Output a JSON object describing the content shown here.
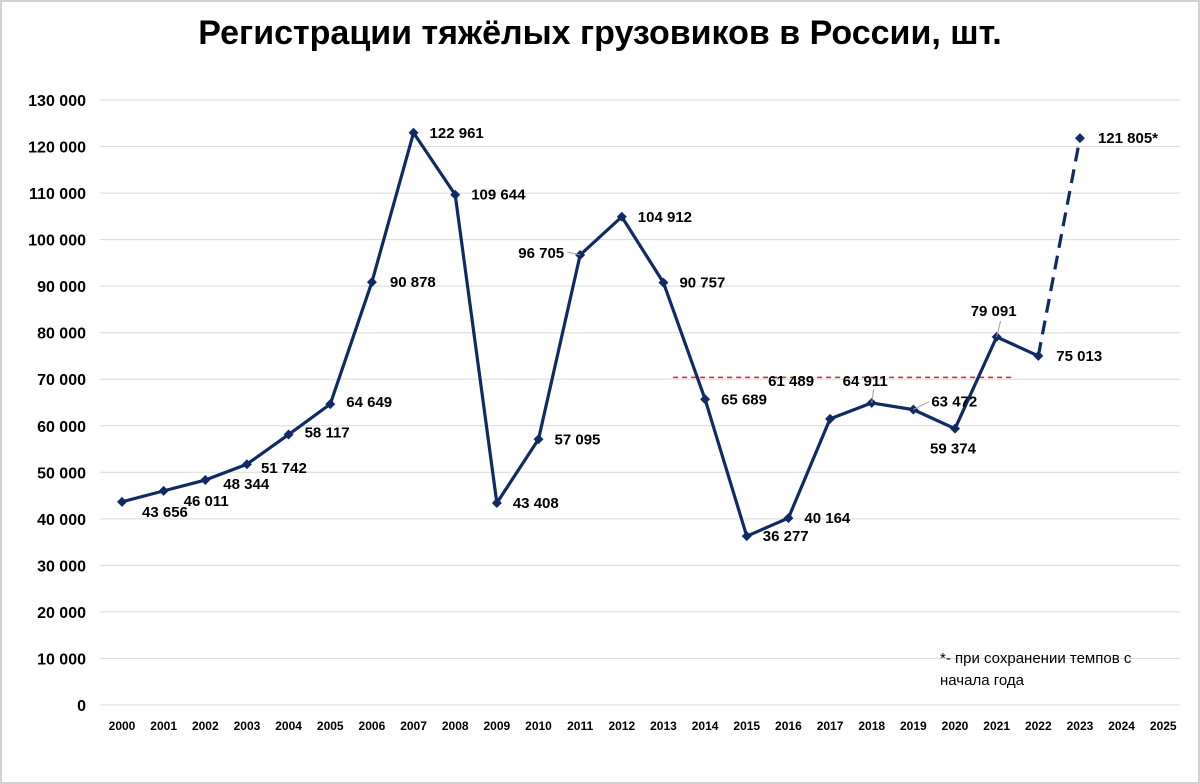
{
  "chart_data": {
    "type": "line",
    "title": "Регистрации тяжёлых грузовиков в России, шт.",
    "xlabel": "",
    "ylabel": "",
    "categories": [
      "2000",
      "2001",
      "2002",
      "2003",
      "2004",
      "2005",
      "2006",
      "2007",
      "2008",
      "2009",
      "2010",
      "2011",
      "2012",
      "2013",
      "2014",
      "2015",
      "2016",
      "2017",
      "2018",
      "2019",
      "2020",
      "2021",
      "2022",
      "2023",
      "2024",
      "2025"
    ],
    "ylim": [
      0,
      130000
    ],
    "y_ticks": [
      {
        "value": 0,
        "label": "0"
      },
      {
        "value": 10000,
        "label": "10 000"
      },
      {
        "value": 20000,
        "label": "20 000"
      },
      {
        "value": 30000,
        "label": "30 000"
      },
      {
        "value": 40000,
        "label": "40 000"
      },
      {
        "value": 50000,
        "label": "50 000"
      },
      {
        "value": 60000,
        "label": "60 000"
      },
      {
        "value": 70000,
        "label": "70 000"
      },
      {
        "value": 80000,
        "label": "80 000"
      },
      {
        "value": 90000,
        "label": "90 000"
      },
      {
        "value": 100000,
        "label": "100 000"
      },
      {
        "value": 110000,
        "label": "110 000"
      },
      {
        "value": 120000,
        "label": "120 000"
      },
      {
        "value": 130000,
        "label": "130 000"
      }
    ],
    "grid": true,
    "series": [
      {
        "values": [
          43656,
          46011,
          48344,
          51742,
          58117,
          64649,
          90878,
          122961,
          109644,
          43408,
          57095,
          96705,
          104912,
          90757,
          65689,
          36277,
          40164,
          61489,
          64911,
          63472,
          59374,
          79091,
          75013,
          121805,
          null,
          null
        ],
        "labels": [
          "43 656",
          "46 011",
          "48 344",
          "51 742",
          "58 117",
          "64 649",
          "90 878",
          "122 961",
          "109 644",
          "43 408",
          "57 095",
          "96 705",
          "104 912",
          "90 757",
          "65 689",
          "36 277",
          "40 164",
          "61 489",
          "64 911",
          "63 472",
          "59 374",
          "79 091",
          "75 013",
          "121 805*",
          "",
          ""
        ],
        "forecast_from_index": 22
      }
    ],
    "reference_line": {
      "value": 70400,
      "from_year": "2014",
      "to_year": "2021",
      "style": "dashed",
      "color": "#e02020"
    },
    "annotation": "*- при сохранении темпов с\nначала года",
    "colors": {
      "series": "#102a66",
      "grid": "#d9d9d9",
      "reference": "#e02020"
    }
  }
}
